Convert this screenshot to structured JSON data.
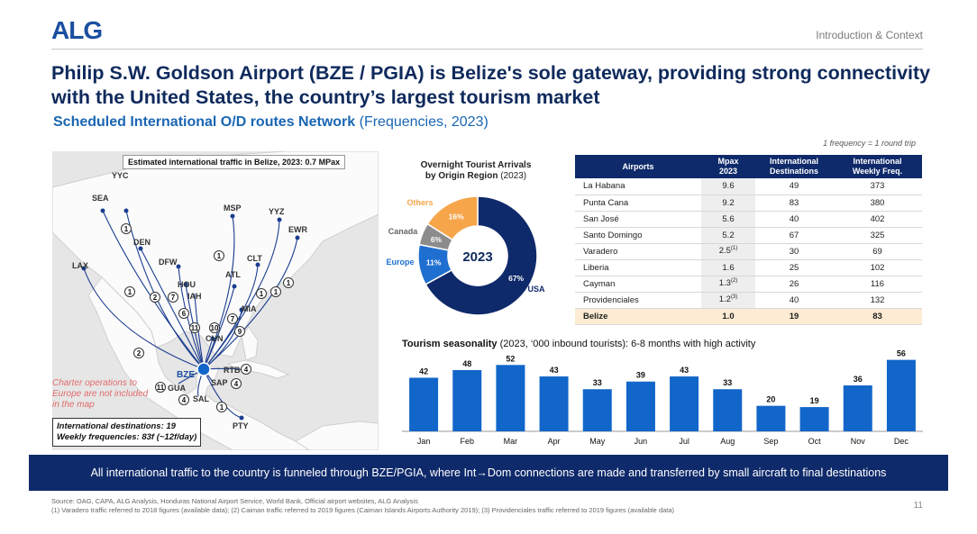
{
  "header": {
    "logo": "ALG",
    "section": "Introduction & Context",
    "title": "Philip S.W. Goldson Airport (BZE / PGIA) is Belize's sole gateway, providing strong connectivity with the United States, the country’s largest tourism market",
    "subtitle_bold": "Scheduled International O/D routes Network",
    "subtitle_rest": " (Frequencies, 2023)",
    "frequency_note": "1 frequency = 1 round trip"
  },
  "map": {
    "caption": "Estimated international traffic in Belize, 2023: 0.7 MPax",
    "charter_note": "Charter operations to Europe are not included in the map",
    "intl_box_line1": "International destinations: 19",
    "intl_box_line2": "Weekly frequencies: 83f (~12f/day)",
    "hub": "BZE",
    "cities": [
      {
        "code": "YYC",
        "freq": "1"
      },
      {
        "code": "SEA",
        "freq": "1"
      },
      {
        "code": "DEN",
        "freq": "2"
      },
      {
        "code": "LAX",
        "freq": "2"
      },
      {
        "code": "DFW",
        "freq": "7"
      },
      {
        "code": "HOU",
        "freq": "6"
      },
      {
        "code": "IAH",
        "freq": ""
      },
      {
        "code": "MSP",
        "freq": "1"
      },
      {
        "code": "YYZ",
        "freq": "1"
      },
      {
        "code": "EWR",
        "freq": "1"
      },
      {
        "code": "CLT",
        "freq": "1"
      },
      {
        "code": "ATL",
        "freq": "7"
      },
      {
        "code": "MIA",
        "freq": "9"
      },
      {
        "code": "CUN",
        "freq": "10"
      },
      {
        "code": "RTB",
        "freq": "4"
      },
      {
        "code": "SAP",
        "freq": "4"
      },
      {
        "code": "GUA",
        "freq": "11"
      },
      {
        "code": "SAL",
        "freq": "4"
      },
      {
        "code": "PTY",
        "freq": "1"
      }
    ],
    "extra_markers": [
      "1",
      "11"
    ]
  },
  "donut": {
    "title": "Overnight Tourist Arrivals",
    "title2": "by Origin Region",
    "title2_year": " (2023)",
    "center_label": "2023",
    "slices": [
      {
        "name": "USA",
        "value": 67,
        "label": "67%",
        "color": "#0f2a6b"
      },
      {
        "name": "Europe",
        "value": 11,
        "label": "11%",
        "color": "#1f6fd1"
      },
      {
        "name": "Canada",
        "value": 6,
        "label": "6%",
        "color": "#8c8c8c"
      },
      {
        "name": "Others",
        "value": 16,
        "label": "16%",
        "color": "#f6a54a"
      }
    ]
  },
  "table": {
    "headers": [
      "Airports",
      "Mpax\n2023",
      "International\nDestinations",
      "International\nWeekly Freq."
    ],
    "rows": [
      {
        "airport": "La Habana",
        "mpax": "9.6",
        "sup": "",
        "dest": "49",
        "freq": "373"
      },
      {
        "airport": "Punta Cana",
        "mpax": "9.2",
        "sup": "",
        "dest": "83",
        "freq": "380"
      },
      {
        "airport": "San José",
        "mpax": "5.6",
        "sup": "",
        "dest": "40",
        "freq": "402"
      },
      {
        "airport": "Santo Domingo",
        "mpax": "5.2",
        "sup": "",
        "dest": "67",
        "freq": "325"
      },
      {
        "airport": "Varadero",
        "mpax": "2.5",
        "sup": "(1)",
        "dest": "30",
        "freq": "69"
      },
      {
        "airport": "Liberia",
        "mpax": "1.6",
        "sup": "",
        "dest": "25",
        "freq": "102"
      },
      {
        "airport": "Cayman",
        "mpax": "1.3",
        "sup": "(2)",
        "dest": "26",
        "freq": "116"
      },
      {
        "airport": "Providenciales",
        "mpax": "1.2",
        "sup": "(3)",
        "dest": "40",
        "freq": "132"
      }
    ],
    "total": {
      "airport": "Belize",
      "mpax": "1.0",
      "dest": "19",
      "freq": "83"
    }
  },
  "bar": {
    "title_bold": "Tourism seasonality",
    "title_rest": " (2023, ‘000 inbound tourists): 6-8 months with high activity"
  },
  "chart_data": [
    {
      "type": "bar",
      "title": "Tourism seasonality (2023, ‘000 inbound tourists): 6-8 months with high activity",
      "categories": [
        "Jan",
        "Feb",
        "Mar",
        "Apr",
        "May",
        "Jun",
        "Jul",
        "Aug",
        "Sep",
        "Oct",
        "Nov",
        "Dec"
      ],
      "values": [
        42,
        48,
        52,
        43,
        33,
        39,
        43,
        33,
        20,
        19,
        36,
        56
      ],
      "color": "#1266c9",
      "xlabel": "",
      "ylabel": "",
      "ylim": [
        0,
        60
      ],
      "grid": false
    },
    {
      "type": "pie",
      "title": "Overnight Tourist Arrivals by Origin Region (2023)",
      "categories": [
        "USA",
        "Europe",
        "Canada",
        "Others"
      ],
      "values": [
        67,
        11,
        6,
        16
      ]
    }
  ],
  "banner": "All international traffic to the country is funneled through BZE/PGIA, where Int→Dom connections are made and transferred by small aircraft to final destinations",
  "footer": {
    "source1": "Source: OAG, CAPA, ALG Analysis, Honduras National Airport Service, World Bank, Official airport websites, ALG Analysis",
    "source2": "(1) Varadero traffic referred to 2018 figures (available data); (2) Caiman traffic referred to 2019 figures (Caiman Islands Airports Authority 2019); (3) Providenciales traffic referred to 2019 figures (available data)",
    "page": "11"
  }
}
